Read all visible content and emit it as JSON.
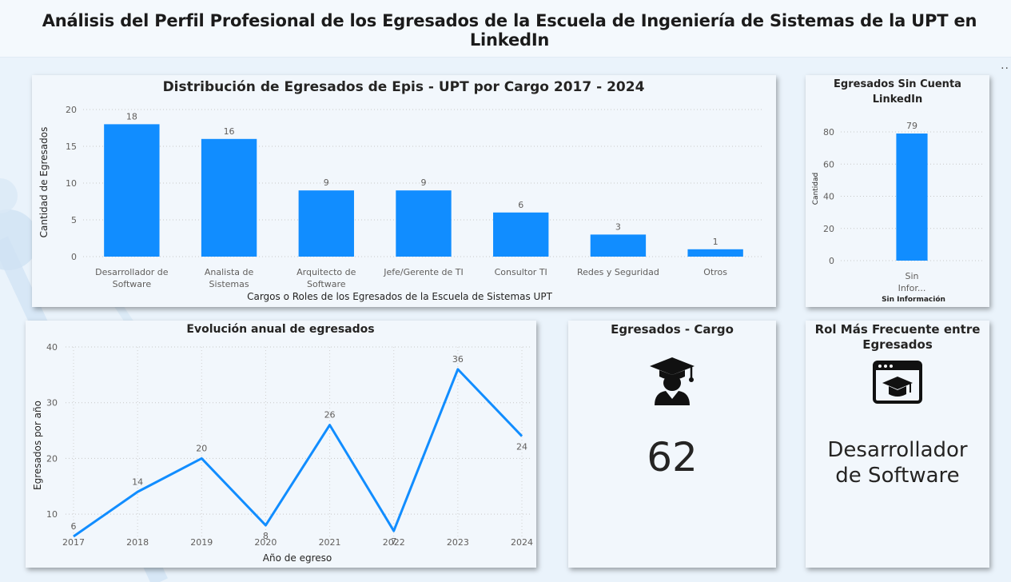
{
  "header": {
    "title": "Análisis del Perfil Profesional de los Egresados de la Escuela de Ingeniería de Sistemas de la UPT en LinkedIn"
  },
  "more_icon": "··",
  "chart_data": [
    {
      "id": "cargo",
      "type": "bar",
      "title": "Distribución de Egresados de Epis - UPT por Cargo 2017 - 2024",
      "xlabel": "Cargos o Roles de los Egresados de la Escuela de Sistemas UPT",
      "ylabel": "Cantidad de Egresados",
      "categories": [
        [
          "Desarrollador de",
          "Software"
        ],
        [
          "Analista de",
          "Sistemas"
        ],
        [
          "Arquitecto de",
          "Software"
        ],
        [
          "Jefe/Gerente de TI"
        ],
        [
          "Consultor TI"
        ],
        [
          "Redes y Seguridad"
        ],
        [
          "Otros"
        ]
      ],
      "values": [
        18,
        16,
        9,
        9,
        6,
        3,
        1
      ],
      "ylim": [
        0,
        20
      ],
      "yticks": [
        0,
        5,
        10,
        15,
        20
      ],
      "grid": true,
      "color": "#118dff"
    },
    {
      "id": "linkedin",
      "type": "bar",
      "title": [
        "Egresados Sin Cuenta",
        "LinkedIn"
      ],
      "xlabel": "Sin Información",
      "ylabel": "Cantidad",
      "categories": [
        [
          "Sin",
          "Infor..."
        ]
      ],
      "values": [
        79
      ],
      "ylim": [
        0,
        80
      ],
      "yticks": [
        0,
        20,
        40,
        60,
        80
      ],
      "grid": true,
      "color": "#118dff"
    },
    {
      "id": "anual",
      "type": "line",
      "title": "Evolución anual de egresados",
      "xlabel": "Año de egreso",
      "ylabel": "Egresados por año",
      "x": [
        "2017",
        "2018",
        "2019",
        "2020",
        "2021",
        "2022",
        "2023",
        "2024"
      ],
      "values": [
        6,
        14,
        20,
        8,
        26,
        7,
        36,
        24
      ],
      "ylim": [
        5,
        40
      ],
      "yticks": [
        10,
        20,
        30,
        40
      ],
      "grid": true,
      "color": "#118dff"
    }
  ],
  "kpi_cargo": {
    "title": "Egresados - Cargo",
    "value": "62",
    "icon": "graduate-icon"
  },
  "kpi_rol": {
    "title_lines": [
      "Rol Más Frecuente entre",
      "Egresados"
    ],
    "value_lines": [
      "Desarrollador",
      "de Software"
    ],
    "icon": "web-graduation-icon"
  }
}
